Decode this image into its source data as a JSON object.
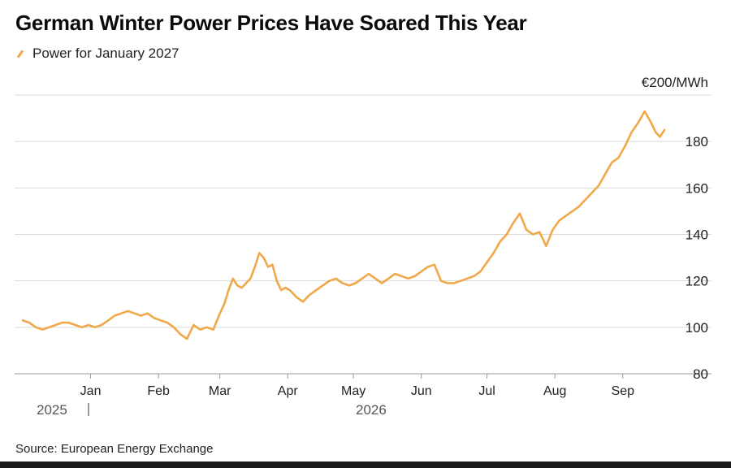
{
  "title": "German Winter Power Prices Have Soared This Year",
  "legend": {
    "label": "Power for January 2027",
    "color": "#f0a848"
  },
  "unit_label": "€200/MWh",
  "source": "Source: European Energy Exchange",
  "year_labels": [
    "2025",
    "2026"
  ],
  "chart_data": {
    "type": "line",
    "title": "German Winter Power Prices Have Soared This Year",
    "xlabel": "",
    "ylabel": "",
    "ylim": [
      80,
      200
    ],
    "yticks": [
      80,
      100,
      120,
      140,
      160,
      180
    ],
    "ytick_top_label": "€200/MWh",
    "grid": true,
    "legend_position": "top-left",
    "month_ticks": [
      "Jan",
      "Feb",
      "Mar",
      "Apr",
      "May",
      "Jun",
      "Jul",
      "Aug",
      "Sep"
    ],
    "series": [
      {
        "name": "Power for January 2027",
        "color": "#f0a848",
        "x": [
          "2025-12-01",
          "2025-12-04",
          "2025-12-07",
          "2025-12-10",
          "2025-12-13",
          "2025-12-16",
          "2025-12-19",
          "2025-12-22",
          "2025-12-25",
          "2025-12-28",
          "2025-12-31",
          "2026-01-03",
          "2026-01-06",
          "2026-01-09",
          "2026-01-12",
          "2026-01-15",
          "2026-01-18",
          "2026-01-21",
          "2026-01-24",
          "2026-01-27",
          "2026-01-30",
          "2026-02-02",
          "2026-02-05",
          "2026-02-08",
          "2026-02-11",
          "2026-02-14",
          "2026-02-17",
          "2026-02-20",
          "2026-02-23",
          "2026-02-26",
          "2026-03-01",
          "2026-03-03",
          "2026-03-05",
          "2026-03-07",
          "2026-03-09",
          "2026-03-11",
          "2026-03-13",
          "2026-03-15",
          "2026-03-17",
          "2026-03-19",
          "2026-03-21",
          "2026-03-23",
          "2026-03-25",
          "2026-03-27",
          "2026-03-29",
          "2026-03-31",
          "2026-04-02",
          "2026-04-05",
          "2026-04-08",
          "2026-04-11",
          "2026-04-14",
          "2026-04-17",
          "2026-04-20",
          "2026-04-23",
          "2026-04-26",
          "2026-04-29",
          "2026-05-02",
          "2026-05-05",
          "2026-05-08",
          "2026-05-11",
          "2026-05-14",
          "2026-05-17",
          "2026-05-20",
          "2026-05-23",
          "2026-05-26",
          "2026-05-29",
          "2026-06-01",
          "2026-06-04",
          "2026-06-07",
          "2026-06-10",
          "2026-06-13",
          "2026-06-16",
          "2026-06-19",
          "2026-06-22",
          "2026-06-25",
          "2026-06-28",
          "2026-07-01",
          "2026-07-04",
          "2026-07-07",
          "2026-07-10",
          "2026-07-13",
          "2026-07-16",
          "2026-07-19",
          "2026-07-22",
          "2026-07-25",
          "2026-07-28",
          "2026-07-31",
          "2026-08-03",
          "2026-08-06",
          "2026-08-09",
          "2026-08-12",
          "2026-08-15",
          "2026-08-18",
          "2026-08-21",
          "2026-08-24",
          "2026-08-27",
          "2026-08-30",
          "2026-09-02",
          "2026-09-05",
          "2026-09-08",
          "2026-09-11",
          "2026-09-14",
          "2026-09-16",
          "2026-09-18",
          "2026-09-20"
        ],
        "values": [
          103,
          102,
          100,
          99,
          100,
          101,
          102,
          102,
          101,
          100,
          101,
          100,
          101,
          103,
          105,
          106,
          107,
          106,
          105,
          106,
          104,
          103,
          102,
          100,
          97,
          95,
          101,
          99,
          100,
          99,
          106,
          110,
          116,
          121,
          118,
          117,
          119,
          121,
          126,
          132,
          130,
          126,
          127,
          120,
          116,
          117,
          116,
          113,
          111,
          114,
          116,
          118,
          120,
          121,
          119,
          118,
          119,
          121,
          123,
          121,
          119,
          121,
          123,
          122,
          121,
          122,
          124,
          126,
          127,
          120,
          119,
          119,
          120,
          121,
          122,
          124,
          128,
          132,
          137,
          140,
          145,
          149,
          142,
          140,
          141,
          135,
          142,
          146,
          148,
          150,
          152,
          155,
          158,
          161,
          166,
          171,
          173,
          178,
          184,
          188,
          193,
          188,
          184,
          182,
          185
        ]
      }
    ]
  }
}
